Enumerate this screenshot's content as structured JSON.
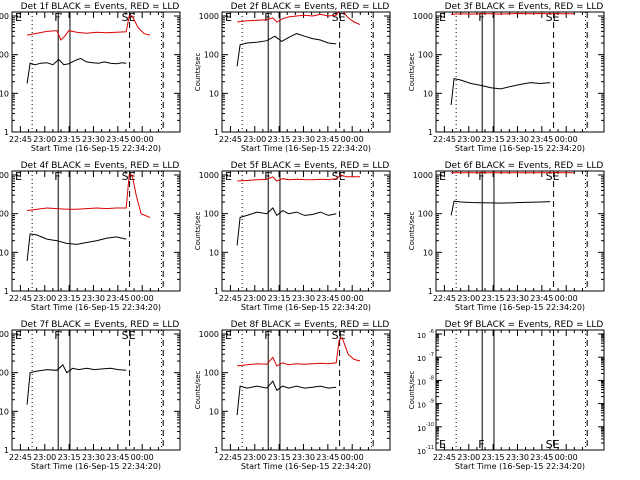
{
  "figure": {
    "background": "#ffffff",
    "event_color": "#000000",
    "lld_color": "#dd0000",
    "xlabel": "Start Time (16-Sep-15 22:34:20)",
    "ylabel": "Counts/sec",
    "x_tick_labels": [
      "22:45",
      "23:00",
      "23:15",
      "23:30",
      "23:45",
      "00:00"
    ],
    "y_tick_labels_std": [
      "1",
      "10",
      "100",
      "1000"
    ],
    "y_tick_labels_9f": [
      "10",
      "10",
      "10",
      "10",
      "10",
      "10"
    ],
    "y_tick_exponents_9f": [
      "-11",
      "-10",
      "-9",
      "-8",
      "-7",
      "-6"
    ]
  },
  "chart_data": [
    {
      "type": "line",
      "panel": "1f",
      "title": "Det 1f BLACK = Events, RED = LLD",
      "ylog": true,
      "ylim": [
        1,
        1000
      ],
      "markers": [
        "E",
        "F",
        "SE"
      ],
      "has_lld": true,
      "series": [
        {
          "color": "#000000",
          "values": [
            [
              0.0,
              18
            ],
            [
              0.03,
              60
            ],
            [
              0.08,
              55
            ],
            [
              0.14,
              60
            ],
            [
              0.2,
              62
            ],
            [
              0.26,
              55
            ],
            [
              0.32,
              75
            ],
            [
              0.37,
              55
            ],
            [
              0.42,
              58
            ],
            [
              0.48,
              70
            ],
            [
              0.54,
              80
            ],
            [
              0.6,
              65
            ],
            [
              0.66,
              62
            ],
            [
              0.72,
              60
            ],
            [
              0.78,
              65
            ],
            [
              0.84,
              60
            ],
            [
              0.9,
              58
            ],
            [
              0.96,
              62
            ],
            [
              1.0,
              60
            ]
          ]
        },
        {
          "color": "#dd0000",
          "values": [
            [
              0.0,
              320
            ],
            [
              0.1,
              360
            ],
            [
              0.2,
              400
            ],
            [
              0.3,
              420
            ],
            [
              0.34,
              240
            ],
            [
              0.38,
              300
            ],
            [
              0.42,
              420
            ],
            [
              0.5,
              380
            ],
            [
              0.6,
              360
            ],
            [
              0.7,
              380
            ],
            [
              0.8,
              370
            ],
            [
              0.9,
              380
            ],
            [
              1.0,
              390
            ],
            [
              1.03,
              1000
            ],
            [
              1.06,
              1000
            ],
            [
              1.12,
              500
            ],
            [
              1.18,
              350
            ],
            [
              1.24,
              320
            ]
          ]
        }
      ]
    },
    {
      "type": "line",
      "panel": "2f",
      "title": "Det 2f BLACK = Events, RED = LLD",
      "ylog": true,
      "ylim": [
        1,
        1000
      ],
      "markers": [
        "E",
        "F",
        "SE"
      ],
      "has_lld": true,
      "series": [
        {
          "color": "#000000",
          "values": [
            [
              0.0,
              50
            ],
            [
              0.03,
              180
            ],
            [
              0.1,
              200
            ],
            [
              0.2,
              210
            ],
            [
              0.3,
              230
            ],
            [
              0.38,
              300
            ],
            [
              0.45,
              220
            ],
            [
              0.52,
              280
            ],
            [
              0.6,
              350
            ],
            [
              0.68,
              300
            ],
            [
              0.76,
              260
            ],
            [
              0.84,
              240
            ],
            [
              0.92,
              200
            ],
            [
              1.0,
              190
            ]
          ]
        },
        {
          "color": "#dd0000",
          "values": [
            [
              0.0,
              700
            ],
            [
              0.1,
              750
            ],
            [
              0.2,
              780
            ],
            [
              0.3,
              800
            ],
            [
              0.36,
              900
            ],
            [
              0.4,
              700
            ],
            [
              0.46,
              850
            ],
            [
              0.52,
              950
            ],
            [
              0.6,
              1000
            ],
            [
              0.68,
              1050
            ],
            [
              0.76,
              1000
            ],
            [
              0.84,
              1100
            ],
            [
              0.92,
              1000
            ],
            [
              1.0,
              1050
            ],
            [
              1.03,
              1300
            ],
            [
              1.06,
              1400
            ],
            [
              1.12,
              900
            ],
            [
              1.18,
              700
            ],
            [
              1.24,
              600
            ]
          ]
        }
      ]
    },
    {
      "type": "line",
      "panel": "3f",
      "title": "Det 3f BLACK = Events, RED = LLD",
      "ylog": true,
      "ylim": [
        1,
        1000
      ],
      "markers": [
        "E",
        "F",
        "SE"
      ],
      "has_lld": true,
      "series": [
        {
          "color": "#000000",
          "values": [
            [
              0.0,
              5
            ],
            [
              0.03,
              24
            ],
            [
              0.1,
              22
            ],
            [
              0.2,
              18
            ],
            [
              0.3,
              16
            ],
            [
              0.4,
              14
            ],
            [
              0.5,
              13
            ],
            [
              0.6,
              15
            ],
            [
              0.7,
              17
            ],
            [
              0.8,
              19
            ],
            [
              0.9,
              18
            ],
            [
              1.0,
              19
            ]
          ]
        },
        {
          "color": "#dd0000",
          "values": [
            [
              0.0,
              1100
            ],
            [
              0.1,
              1150
            ],
            [
              0.2,
              1120
            ],
            [
              0.3,
              1150
            ],
            [
              0.4,
              1150
            ],
            [
              0.5,
              1120
            ],
            [
              0.6,
              1150
            ],
            [
              0.7,
              1160
            ],
            [
              0.8,
              1150
            ],
            [
              0.9,
              1160
            ],
            [
              1.0,
              1150
            ],
            [
              1.1,
              1150
            ],
            [
              1.24,
              1150
            ]
          ]
        }
      ]
    },
    {
      "type": "line",
      "panel": "4f",
      "title": "Det 4f BLACK = Events, RED = LLD",
      "ylog": true,
      "ylim": [
        1,
        1000
      ],
      "markers": [
        "E",
        "F",
        "SE"
      ],
      "has_lld": true,
      "series": [
        {
          "color": "#000000",
          "values": [
            [
              0.0,
              6
            ],
            [
              0.03,
              30
            ],
            [
              0.1,
              28
            ],
            [
              0.2,
              22
            ],
            [
              0.3,
              20
            ],
            [
              0.4,
              17
            ],
            [
              0.5,
              16
            ],
            [
              0.6,
              18
            ],
            [
              0.7,
              20
            ],
            [
              0.8,
              23
            ],
            [
              0.9,
              25
            ],
            [
              1.0,
              22
            ]
          ]
        },
        {
          "color": "#dd0000",
          "values": [
            [
              0.0,
              120
            ],
            [
              0.1,
              130
            ],
            [
              0.2,
              140
            ],
            [
              0.3,
              135
            ],
            [
              0.4,
              130
            ],
            [
              0.5,
              130
            ],
            [
              0.6,
              135
            ],
            [
              0.7,
              140
            ],
            [
              0.8,
              135
            ],
            [
              0.9,
              140
            ],
            [
              1.0,
              140
            ],
            [
              1.03,
              1000
            ],
            [
              1.06,
              1000
            ],
            [
              1.1,
              300
            ],
            [
              1.15,
              100
            ],
            [
              1.24,
              80
            ]
          ]
        }
      ]
    },
    {
      "type": "line",
      "panel": "5f",
      "title": "Det 5f BLACK = Events, RED = LLD",
      "ylog": true,
      "ylim": [
        1,
        1000
      ],
      "markers": [
        "E",
        "F",
        "SE"
      ],
      "has_lld": true,
      "series": [
        {
          "color": "#000000",
          "values": [
            [
              0.0,
              15
            ],
            [
              0.03,
              80
            ],
            [
              0.1,
              90
            ],
            [
              0.2,
              110
            ],
            [
              0.3,
              100
            ],
            [
              0.36,
              140
            ],
            [
              0.4,
              90
            ],
            [
              0.46,
              120
            ],
            [
              0.52,
              100
            ],
            [
              0.6,
              110
            ],
            [
              0.68,
              90
            ],
            [
              0.76,
              95
            ],
            [
              0.84,
              110
            ],
            [
              0.92,
              90
            ],
            [
              1.0,
              100
            ]
          ]
        },
        {
          "color": "#dd0000",
          "values": [
            [
              0.0,
              700
            ],
            [
              0.1,
              720
            ],
            [
              0.2,
              750
            ],
            [
              0.3,
              780
            ],
            [
              0.36,
              900
            ],
            [
              0.4,
              700
            ],
            [
              0.46,
              800
            ],
            [
              0.52,
              750
            ],
            [
              0.6,
              780
            ],
            [
              0.68,
              760
            ],
            [
              0.76,
              750
            ],
            [
              0.84,
              780
            ],
            [
              0.92,
              760
            ],
            [
              1.0,
              800
            ],
            [
              1.05,
              1000
            ],
            [
              1.1,
              900
            ],
            [
              1.24,
              900
            ]
          ]
        }
      ]
    },
    {
      "type": "line",
      "panel": "6f",
      "title": "Det 6f BLACK = Events, RED = LLD",
      "ylog": true,
      "ylim": [
        1,
        1000
      ],
      "markers": [
        "E",
        "F",
        "SE"
      ],
      "has_lld": true,
      "series": [
        {
          "color": "#000000",
          "values": [
            [
              0.0,
              90
            ],
            [
              0.03,
              210
            ],
            [
              0.1,
              200
            ],
            [
              0.2,
              195
            ],
            [
              0.3,
              192
            ],
            [
              0.4,
              190
            ],
            [
              0.5,
              188
            ],
            [
              0.6,
              190
            ],
            [
              0.7,
              195
            ],
            [
              0.8,
              198
            ],
            [
              0.9,
              200
            ],
            [
              1.0,
              205
            ]
          ]
        },
        {
          "color": "#dd0000",
          "values": [
            [
              0.0,
              1150
            ],
            [
              0.1,
              1150
            ],
            [
              0.3,
              1150
            ],
            [
              0.5,
              1150
            ],
            [
              0.7,
              1150
            ],
            [
              0.9,
              1150
            ],
            [
              1.1,
              1150
            ],
            [
              1.24,
              1150
            ]
          ]
        }
      ]
    },
    {
      "type": "line",
      "panel": "7f",
      "title": "Det 7f BLACK = Events, RED = LLD",
      "ylog": true,
      "ylim": [
        1,
        1000
      ],
      "markers": [
        "E",
        "F",
        "SE"
      ],
      "has_lld": false,
      "series": [
        {
          "color": "#000000",
          "values": [
            [
              0.0,
              15
            ],
            [
              0.03,
              100
            ],
            [
              0.1,
              110
            ],
            [
              0.2,
              120
            ],
            [
              0.3,
              115
            ],
            [
              0.36,
              160
            ],
            [
              0.4,
              100
            ],
            [
              0.46,
              130
            ],
            [
              0.52,
              120
            ],
            [
              0.6,
              130
            ],
            [
              0.68,
              120
            ],
            [
              0.76,
              125
            ],
            [
              0.84,
              130
            ],
            [
              0.92,
              120
            ],
            [
              1.0,
              115
            ]
          ]
        }
      ]
    },
    {
      "type": "line",
      "panel": "8f",
      "title": "Det 8f BLACK = Events, RED = LLD",
      "ylog": true,
      "ylim": [
        1,
        1000
      ],
      "markers": [
        "E",
        "F",
        "SE"
      ],
      "has_lld": true,
      "series": [
        {
          "color": "#000000",
          "values": [
            [
              0.0,
              8
            ],
            [
              0.03,
              45
            ],
            [
              0.1,
              40
            ],
            [
              0.2,
              45
            ],
            [
              0.3,
              40
            ],
            [
              0.36,
              60
            ],
            [
              0.4,
              35
            ],
            [
              0.46,
              45
            ],
            [
              0.52,
              40
            ],
            [
              0.6,
              45
            ],
            [
              0.68,
              40
            ],
            [
              0.76,
              42
            ],
            [
              0.84,
              45
            ],
            [
              0.92,
              40
            ],
            [
              1.0,
              42
            ]
          ]
        },
        {
          "color": "#dd0000",
          "values": [
            [
              0.0,
              150
            ],
            [
              0.1,
              160
            ],
            [
              0.2,
              170
            ],
            [
              0.3,
              165
            ],
            [
              0.36,
              250
            ],
            [
              0.4,
              150
            ],
            [
              0.46,
              180
            ],
            [
              0.52,
              160
            ],
            [
              0.6,
              170
            ],
            [
              0.68,
              165
            ],
            [
              0.76,
              170
            ],
            [
              0.84,
              175
            ],
            [
              0.92,
              170
            ],
            [
              1.0,
              180
            ],
            [
              1.03,
              700
            ],
            [
              1.06,
              800
            ],
            [
              1.12,
              300
            ],
            [
              1.18,
              220
            ],
            [
              1.24,
              200
            ]
          ]
        }
      ]
    },
    {
      "type": "line",
      "panel": "9f",
      "title": "Det 9f BLACK = Events, RED = LLD",
      "ylog": true,
      "ylim": [
        1e-11,
        1e-06
      ],
      "markers": [
        "E",
        "F",
        "SE"
      ],
      "has_lld": false,
      "series": []
    }
  ]
}
